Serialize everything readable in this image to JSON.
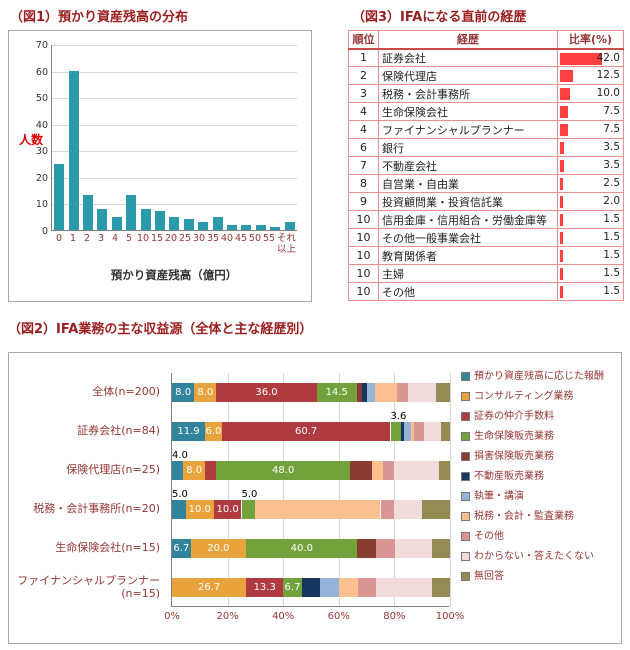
{
  "colors": {
    "title": "#9A1E1E",
    "axis_text": "#943634",
    "y_label_red": "#DD0000",
    "table_bar": "#FF4040",
    "table_border": "#E89090",
    "histogram_bar": "#2B9AAB"
  },
  "chart_data": [
    {
      "id": "fig1",
      "type": "bar",
      "title": "（図1）預かり資産残高の分布",
      "ylabel": "人数",
      "xlabel": "預かり資産残高（億円）",
      "ylim": [
        0,
        70
      ],
      "yticks": [
        0,
        10,
        20,
        30,
        40,
        50,
        60,
        70
      ],
      "grid": true,
      "categories": [
        "0",
        "1",
        "2",
        "3",
        "4",
        "5",
        "10",
        "15",
        "20",
        "25",
        "30",
        "35",
        "40",
        "45",
        "50",
        "55",
        "それ以上"
      ],
      "values": [
        25,
        60,
        13,
        8,
        5,
        13,
        8,
        7,
        5,
        4,
        3,
        5,
        2,
        2,
        2,
        1,
        3
      ],
      "bar_color": "#2B9AAB"
    },
    {
      "id": "fig3",
      "type": "table",
      "title": "（図3）IFAになる直前の経歴",
      "headers": [
        "順位",
        "経歴",
        "比率(%)"
      ],
      "bar_max": 42.0,
      "rows": [
        {
          "rank": "1",
          "career": "証券会社",
          "ratio": "42.0"
        },
        {
          "rank": "2",
          "career": "保険代理店",
          "ratio": "12.5"
        },
        {
          "rank": "3",
          "career": "税務・会計事務所",
          "ratio": "10.0"
        },
        {
          "rank": "4",
          "career": "生命保険会社",
          "ratio": "7.5"
        },
        {
          "rank": "4",
          "career": "ファイナンシャルプランナー",
          "ratio": "7.5"
        },
        {
          "rank": "6",
          "career": "銀行",
          "ratio": "3.5"
        },
        {
          "rank": "7",
          "career": "不動産会社",
          "ratio": "3.5"
        },
        {
          "rank": "8",
          "career": "自営業・自由業",
          "ratio": "2.5"
        },
        {
          "rank": "9",
          "career": "投資顧問業・投資信託業",
          "ratio": "2.0"
        },
        {
          "rank": "10",
          "career": "信用金庫・信用組合・労働金庫等",
          "ratio": "1.5"
        },
        {
          "rank": "10",
          "career": "その他一般事業会社",
          "ratio": "1.5"
        },
        {
          "rank": "10",
          "career": "教育関係者",
          "ratio": "1.5"
        },
        {
          "rank": "10",
          "career": "主婦",
          "ratio": "1.5"
        },
        {
          "rank": "10",
          "career": "その他",
          "ratio": "1.5"
        }
      ]
    },
    {
      "id": "fig2",
      "type": "bar",
      "subtype": "stacked_horizontal",
      "title": "（図2）IFA業務の主な収益源（全体と主な経歴別）",
      "categories": [
        "全体(n=200)",
        "証券会社(n=84)",
        "保険代理店(n=25)",
        "税務・会計事務所(n=20)",
        "生命保険会社(n=15)",
        "ファイナンシャルプランナー (n=15)"
      ],
      "xticks": [
        "0%",
        "20%",
        "40%",
        "60%",
        "80%",
        "100%"
      ],
      "xlim": [
        0,
        100
      ],
      "legend_position": "right",
      "series": [
        {
          "name": "預かり資産残高に応じた報酬",
          "color": "#31849B",
          "values": [
            8.0,
            11.9,
            4.0,
            5.0,
            6.7,
            0
          ],
          "labels": [
            "8.0",
            "11.9",
            "4.0",
            "5.0",
            "6.7",
            ""
          ]
        },
        {
          "name": "コンサルティング業務",
          "color": "#E8A33D",
          "values": [
            8.0,
            6.0,
            8.0,
            10.0,
            20.0,
            26.7
          ],
          "labels": [
            "8.0",
            "6.0",
            "8.0",
            "10.0",
            "20.0",
            "26.7"
          ]
        },
        {
          "name": "証券の仲介手数料",
          "color": "#AF3A40",
          "values": [
            36.0,
            60.7,
            4.0,
            10.0,
            0,
            13.3
          ],
          "labels": [
            "36.0",
            "60.7",
            "",
            "10.0",
            "",
            "13.3"
          ]
        },
        {
          "name": "生命保険販売業務",
          "color": "#72A23C",
          "values": [
            14.5,
            3.6,
            48.0,
            5.0,
            40.0,
            6.7
          ],
          "labels": [
            "14.5",
            "3.6",
            "48.0",
            "5.0",
            "40.0",
            "6.7"
          ]
        },
        {
          "name": "損害保険販売業務",
          "color": "#8A3B32",
          "values": [
            2.0,
            0,
            8.0,
            0,
            6.7,
            0
          ],
          "labels": [
            "",
            "",
            "",
            "",
            "",
            ""
          ]
        },
        {
          "name": "不動産販売業務",
          "color": "#17375E",
          "values": [
            1.5,
            1.2,
            0,
            0,
            0,
            6.7
          ],
          "labels": [
            "",
            "",
            "",
            "",
            "",
            ""
          ]
        },
        {
          "name": "執筆・講演",
          "color": "#95B3D7",
          "values": [
            3.0,
            2.4,
            0,
            0,
            0,
            6.7
          ],
          "labels": [
            "",
            "",
            "",
            "",
            "",
            ""
          ]
        },
        {
          "name": "税務・会計・監査業務",
          "color": "#FAC08F",
          "values": [
            8.0,
            1.2,
            4.0,
            45.0,
            0,
            6.7
          ],
          "labels": [
            "",
            "",
            "",
            "",
            "",
            ""
          ]
        },
        {
          "name": "その他",
          "color": "#D99694",
          "values": [
            4.0,
            3.6,
            4.0,
            5.0,
            6.7,
            6.7
          ],
          "labels": [
            "",
            "",
            "",
            "",
            "",
            ""
          ]
        },
        {
          "name": "わからない・答えたくない",
          "color": "#F2DCDB",
          "values": [
            10.0,
            6.0,
            16.0,
            10.0,
            13.3,
            20.0
          ],
          "labels": [
            "",
            "",
            "",
            "",
            "",
            ""
          ]
        },
        {
          "name": "無回答",
          "color": "#948A54",
          "values": [
            5.0,
            3.4,
            4.0,
            10.0,
            6.6,
            6.5
          ],
          "labels": [
            "",
            "",
            "",
            "",
            "",
            ""
          ]
        }
      ]
    }
  ]
}
